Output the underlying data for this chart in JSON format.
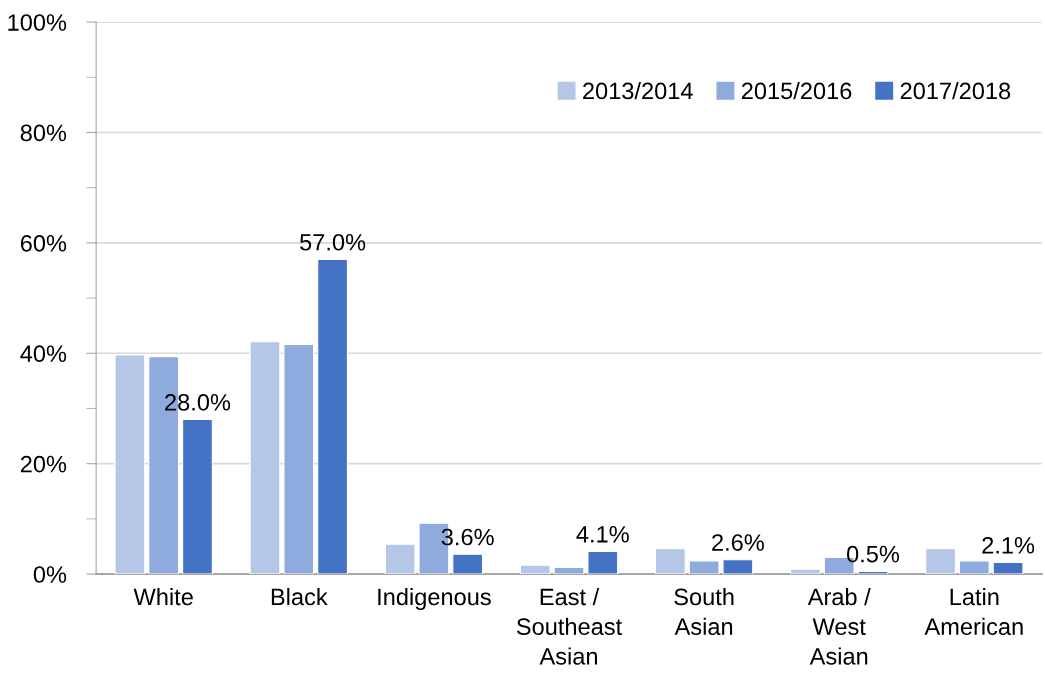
{
  "chart_data": {
    "type": "bar",
    "categories": [
      "White",
      "Black",
      "Indigenous",
      "East /\nSoutheast\nAsian",
      "South\nAsian",
      "Arab /\nWest\nAsian",
      "Latin\nAmerican"
    ],
    "series": [
      {
        "name": "2013/2014",
        "color": "#b4c7e7",
        "values": [
          39.7,
          42.1,
          5.4,
          1.6,
          4.6,
          0.9,
          4.6
        ]
      },
      {
        "name": "2015/2016",
        "color": "#8faadc",
        "values": [
          39.4,
          41.6,
          9.2,
          1.2,
          2.4,
          3.0,
          2.4
        ]
      },
      {
        "name": "2017/2018",
        "color": "#4472c4",
        "values": [
          28.0,
          57.0,
          3.6,
          4.1,
          2.6,
          0.5,
          2.1
        ],
        "value_labels": [
          "28.0%",
          "57.0%",
          "3.6%",
          "4.1%",
          "2.6%",
          "0.5%",
          "2.1%"
        ]
      }
    ],
    "ylim": [
      0,
      100
    ],
    "yticks": [
      {
        "value": 0,
        "label": "0%"
      },
      {
        "value": 10,
        "label": null
      },
      {
        "value": 20,
        "label": "20%"
      },
      {
        "value": 30,
        "label": null
      },
      {
        "value": 40,
        "label": "40%"
      },
      {
        "value": 50,
        "label": null
      },
      {
        "value": 60,
        "label": "60%"
      },
      {
        "value": 70,
        "label": null
      },
      {
        "value": 80,
        "label": "80%"
      },
      {
        "value": 90,
        "label": null
      },
      {
        "value": 100,
        "label": "100%"
      }
    ],
    "grid": "y",
    "legend": "top right"
  }
}
